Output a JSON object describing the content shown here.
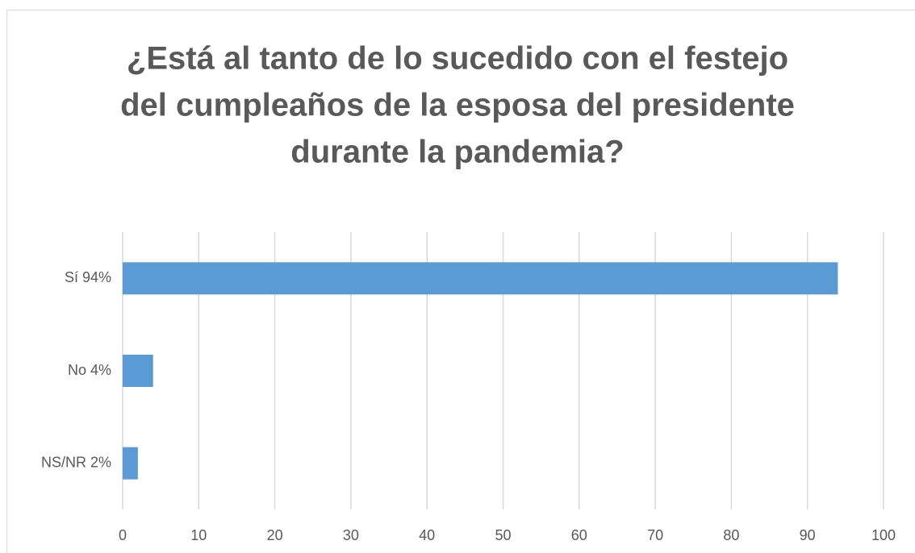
{
  "chart_data": {
    "type": "bar",
    "orientation": "horizontal",
    "title": [
      "¿Está al tanto de lo sucedido con el festejo",
      "del cumpleaños de la esposa del presidente",
      "durante la pandemia?"
    ],
    "categories": [
      "Sí 94%",
      "No 4%",
      "NS/NR 2%"
    ],
    "values": [
      94,
      4,
      2
    ],
    "color": "#5b9bd5",
    "xlim": [
      0,
      100
    ],
    "xticks": [
      0,
      10,
      20,
      30,
      40,
      50,
      60,
      70,
      80,
      90,
      100
    ],
    "grid": true
  }
}
